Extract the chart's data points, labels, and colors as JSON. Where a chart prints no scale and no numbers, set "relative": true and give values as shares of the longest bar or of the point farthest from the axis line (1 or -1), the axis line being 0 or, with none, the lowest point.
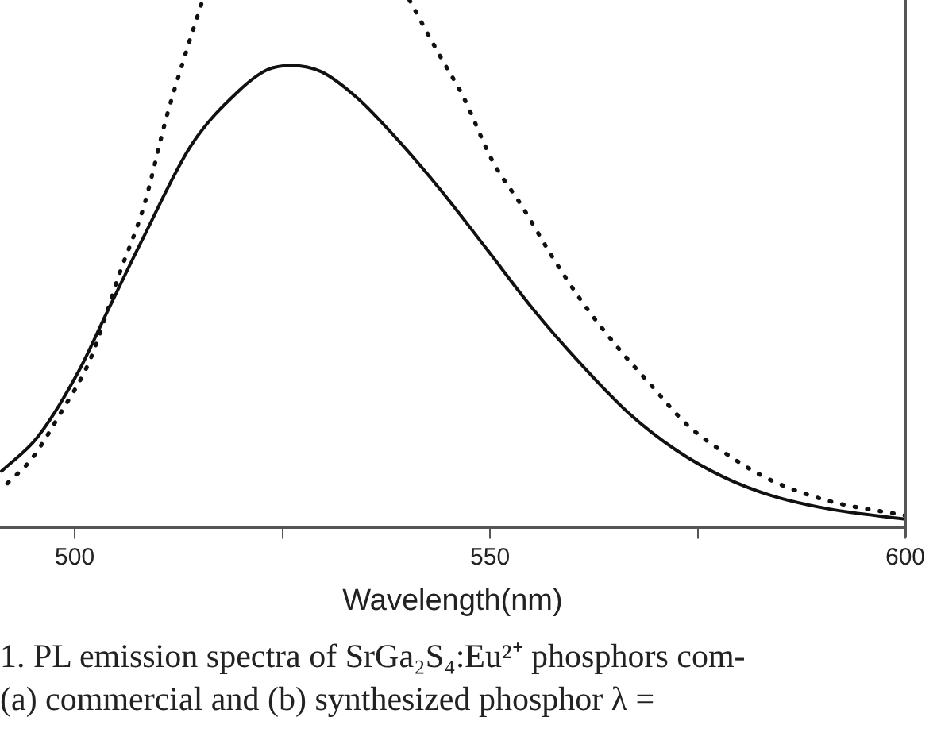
{
  "chart_data": {
    "type": "line",
    "relative": true,
    "xlabel": "Wavelength(nm)",
    "annotations": [
      "1. PL emission spectra of SrGa₂S₄:Eu²⁺ phosphors com-",
      "(a) commercial and (b) synthesized phosphor λ =    "
    ],
    "xlim": [
      491,
      600
    ],
    "xticks": [
      500,
      {
        "value": 525,
        "label": null
      },
      550,
      {
        "value": 575,
        "label": null
      },
      600
    ],
    "series": [
      {
        "color": "#111111",
        "line_style": "solid",
        "x": [
          491.2,
          495.5,
          500.5,
          504.0,
          508.3,
          514.0,
          519.7,
          523.2,
          526.1,
          529.7,
          533.9,
          538.2,
          543.9,
          549.6,
          555.3,
          561.0,
          566.7,
          572.4,
          578.1,
          583.8,
          590.9,
          600
        ],
        "values": [
          0.107,
          0.171,
          0.297,
          0.412,
          0.551,
          0.724,
          0.827,
          0.868,
          0.876,
          0.864,
          0.816,
          0.747,
          0.643,
          0.528,
          0.412,
          0.309,
          0.217,
          0.147,
          0.096,
          0.061,
          0.035,
          0.016
        ]
      },
      {
        "color": "#111111",
        "line_style": "dotted",
        "x": [
          491.9,
          494.8,
          498.3,
          501.9,
          505.4,
          508.3,
          511.1,
          513.3,
          515.4,
          527.8,
          540.3,
          543.9,
          546.8,
          550.3,
          553.9,
          557.4,
          561.0,
          565.3,
          569.5,
          573.8,
          578.8,
          583.8,
          590.9,
          600
        ],
        "values": [
          0.084,
          0.13,
          0.217,
          0.32,
          0.482,
          0.608,
          0.781,
          0.896,
          1,
          null,
          1,
          0.896,
          0.816,
          0.695,
          0.608,
          0.516,
          0.43,
          0.343,
          0.268,
          0.194,
          0.136,
          0.09,
          0.05,
          0.023
        ]
      }
    ]
  }
}
